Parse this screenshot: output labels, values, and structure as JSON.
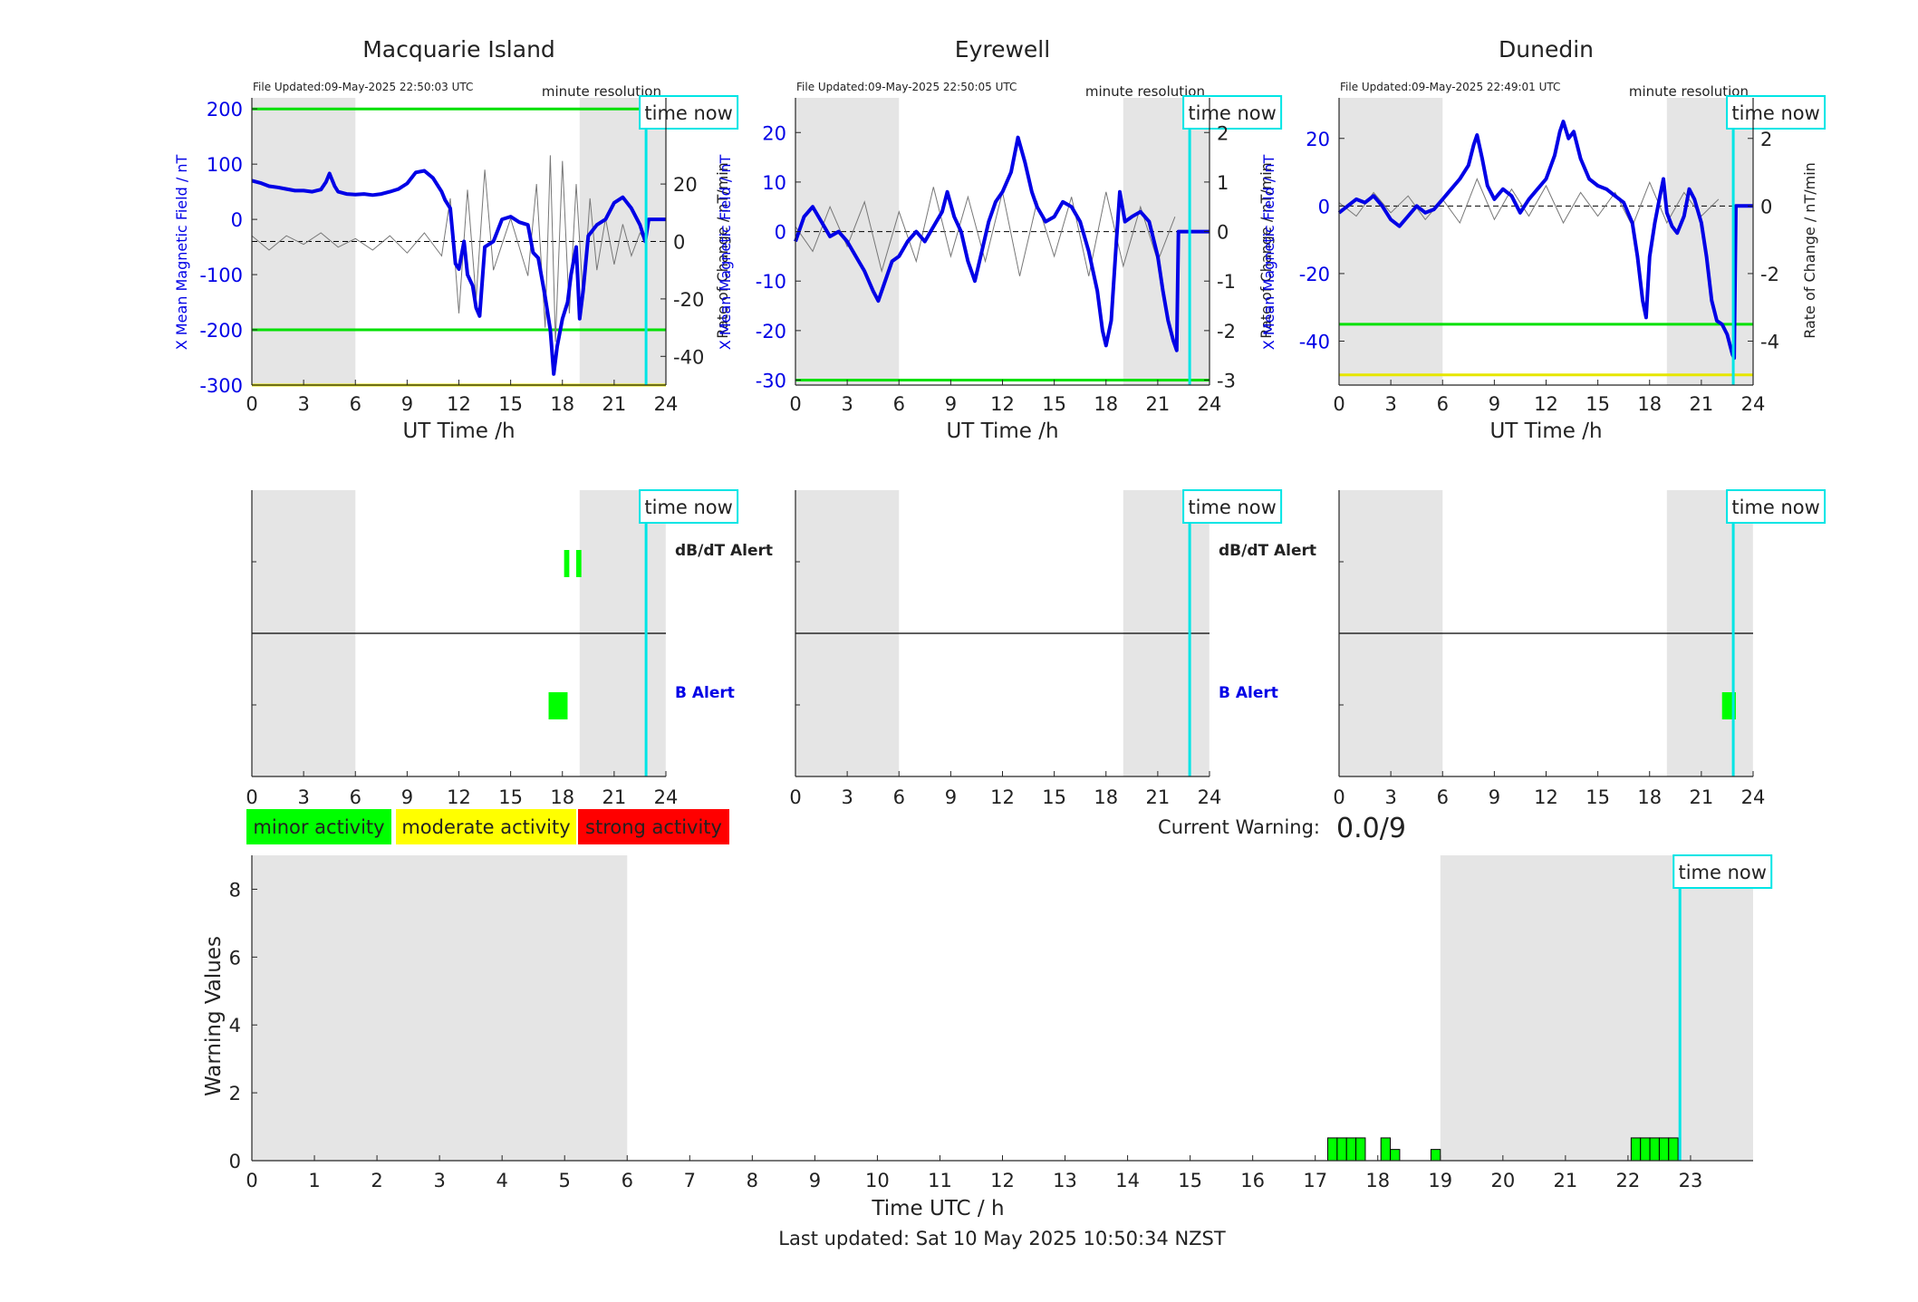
{
  "stations": [
    {
      "name": "Macquarie Island",
      "file_updated": "File Updated:09-May-2025 22:50:03 UTC",
      "resolution": "minute resolution",
      "left_axis": {
        "label": "X Mean Magnetic Field / nT",
        "ticks": [
          200,
          100,
          0,
          -100,
          -200,
          -300
        ],
        "range": [
          -300,
          220
        ]
      },
      "right_axis": {
        "label": "Rate of Change / nT/min",
        "ticks": [
          20,
          0,
          -20,
          -40
        ],
        "range": [
          -50,
          50
        ]
      },
      "threshold_lines": [
        {
          "value": 200,
          "color": "#00e000"
        },
        {
          "value": -200,
          "color": "#00e000"
        },
        {
          "value": -300,
          "color": "#e6e600"
        }
      ],
      "field_series": [
        [
          0,
          70
        ],
        [
          0.5,
          66
        ],
        [
          1,
          60
        ],
        [
          1.5,
          58
        ],
        [
          2,
          55
        ],
        [
          2.5,
          52
        ],
        [
          3,
          52
        ],
        [
          3.5,
          50
        ],
        [
          4,
          54
        ],
        [
          4.3,
          68
        ],
        [
          4.5,
          83
        ],
        [
          4.8,
          60
        ],
        [
          5,
          50
        ],
        [
          5.5,
          46
        ],
        [
          6,
          45
        ],
        [
          6.5,
          46
        ],
        [
          7,
          44
        ],
        [
          7.5,
          46
        ],
        [
          8,
          50
        ],
        [
          8.5,
          55
        ],
        [
          9,
          65
        ],
        [
          9.5,
          85
        ],
        [
          10,
          88
        ],
        [
          10.5,
          75
        ],
        [
          11,
          50
        ],
        [
          11.2,
          35
        ],
        [
          11.5,
          20
        ],
        [
          11.8,
          -80
        ],
        [
          12,
          -90
        ],
        [
          12.3,
          -40
        ],
        [
          12.5,
          -100
        ],
        [
          12.8,
          -120
        ],
        [
          13,
          -160
        ],
        [
          13.2,
          -175
        ],
        [
          13.5,
          -50
        ],
        [
          14,
          -40
        ],
        [
          14.5,
          0
        ],
        [
          15,
          5
        ],
        [
          15.5,
          -5
        ],
        [
          16,
          -10
        ],
        [
          16.3,
          -60
        ],
        [
          16.6,
          -70
        ],
        [
          17,
          -140
        ],
        [
          17.3,
          -200
        ],
        [
          17.5,
          -280
        ],
        [
          17.7,
          -230
        ],
        [
          18,
          -180
        ],
        [
          18.3,
          -150
        ],
        [
          18.5,
          -100
        ],
        [
          18.8,
          -50
        ],
        [
          19,
          -180
        ],
        [
          19.2,
          -130
        ],
        [
          19.5,
          -30
        ],
        [
          20,
          -10
        ],
        [
          20.5,
          0
        ],
        [
          21,
          30
        ],
        [
          21.5,
          40
        ],
        [
          22,
          20
        ],
        [
          22.5,
          -10
        ],
        [
          22.8,
          -40
        ],
        [
          23,
          0
        ],
        [
          24,
          0
        ]
      ],
      "rate_series": [
        [
          0,
          2
        ],
        [
          1,
          -3
        ],
        [
          2,
          2
        ],
        [
          3,
          -1
        ],
        [
          4,
          3
        ],
        [
          5,
          -2
        ],
        [
          6,
          1
        ],
        [
          7,
          -3
        ],
        [
          8,
          2
        ],
        [
          9,
          -4
        ],
        [
          10,
          3
        ],
        [
          11,
          -5
        ],
        [
          11.5,
          15
        ],
        [
          12,
          -25
        ],
        [
          12.5,
          18
        ],
        [
          13,
          -20
        ],
        [
          13.5,
          25
        ],
        [
          14,
          -10
        ],
        [
          15,
          8
        ],
        [
          16,
          -12
        ],
        [
          16.5,
          20
        ],
        [
          17,
          -30
        ],
        [
          17.3,
          30
        ],
        [
          17.6,
          -35
        ],
        [
          18,
          28
        ],
        [
          18.4,
          -25
        ],
        [
          18.8,
          20
        ],
        [
          19.2,
          -20
        ],
        [
          19.6,
          15
        ],
        [
          20,
          -10
        ],
        [
          20.5,
          8
        ],
        [
          21,
          -8
        ],
        [
          21.5,
          6
        ],
        [
          22,
          -5
        ],
        [
          22.5,
          3
        ],
        [
          22.8,
          0
        ]
      ],
      "alerts": {
        "dbdt": {
          "label": "dB/dT Alert",
          "intervals": [
            [
              18.1,
              18.4
            ],
            [
              18.8,
              19.1
            ]
          ]
        },
        "b": {
          "label": "B Alert",
          "intervals": [
            [
              17.2,
              18.3
            ]
          ]
        }
      }
    },
    {
      "name": "Eyrewell",
      "file_updated": "File Updated:09-May-2025 22:50:05 UTC",
      "resolution": "minute resolution",
      "left_axis": {
        "label": "X Mean Magnetic Field / nT",
        "ticks": [
          20,
          10,
          0,
          -10,
          -20,
          -30
        ],
        "range": [
          -31,
          27
        ]
      },
      "right_axis": {
        "label": "Rate of Change / nT/min",
        "ticks": [
          2,
          1,
          0,
          -1,
          -2,
          -3
        ],
        "range": [
          -3.1,
          2.7
        ]
      },
      "threshold_lines": [
        {
          "value": -30,
          "color": "#00e000"
        }
      ],
      "field_series": [
        [
          0,
          -2
        ],
        [
          0.5,
          3
        ],
        [
          1,
          5
        ],
        [
          1.5,
          2
        ],
        [
          2,
          -1
        ],
        [
          2.5,
          0
        ],
        [
          3,
          -2
        ],
        [
          3.5,
          -5
        ],
        [
          4,
          -8
        ],
        [
          4.5,
          -12
        ],
        [
          4.8,
          -14
        ],
        [
          5.2,
          -10
        ],
        [
          5.6,
          -6
        ],
        [
          6,
          -5
        ],
        [
          6.5,
          -2
        ],
        [
          7,
          0
        ],
        [
          7.5,
          -2
        ],
        [
          8,
          1
        ],
        [
          8.5,
          4
        ],
        [
          8.8,
          8
        ],
        [
          9.2,
          3
        ],
        [
          9.6,
          0
        ],
        [
          10,
          -6
        ],
        [
          10.4,
          -10
        ],
        [
          10.8,
          -4
        ],
        [
          11.2,
          2
        ],
        [
          11.6,
          6
        ],
        [
          12,
          8
        ],
        [
          12.5,
          12
        ],
        [
          12.9,
          19
        ],
        [
          13.3,
          14
        ],
        [
          13.7,
          8
        ],
        [
          14,
          5
        ],
        [
          14.5,
          2
        ],
        [
          15,
          3
        ],
        [
          15.5,
          6
        ],
        [
          16,
          5
        ],
        [
          16.5,
          2
        ],
        [
          17,
          -4
        ],
        [
          17.5,
          -12
        ],
        [
          17.8,
          -20
        ],
        [
          18,
          -23
        ],
        [
          18.3,
          -18
        ],
        [
          18.6,
          -2
        ],
        [
          18.8,
          8
        ],
        [
          19.1,
          2
        ],
        [
          19.5,
          3
        ],
        [
          20,
          4
        ],
        [
          20.5,
          2
        ],
        [
          21,
          -5
        ],
        [
          21.3,
          -12
        ],
        [
          21.6,
          -18
        ],
        [
          21.9,
          -22
        ],
        [
          22.1,
          -24
        ],
        [
          22.2,
          0
        ],
        [
          24,
          0
        ]
      ],
      "rate_series": [
        [
          0,
          0.1
        ],
        [
          1,
          -0.4
        ],
        [
          2,
          0.5
        ],
        [
          3,
          -0.3
        ],
        [
          4,
          0.6
        ],
        [
          5,
          -0.8
        ],
        [
          6,
          0.4
        ],
        [
          7,
          -0.6
        ],
        [
          8,
          0.9
        ],
        [
          9,
          -0.5
        ],
        [
          10,
          0.7
        ],
        [
          11,
          -0.6
        ],
        [
          12,
          0.8
        ],
        [
          13,
          -0.9
        ],
        [
          14,
          0.6
        ],
        [
          15,
          -0.5
        ],
        [
          16,
          0.7
        ],
        [
          17,
          -0.9
        ],
        [
          18,
          0.8
        ],
        [
          19,
          -0.7
        ],
        [
          20,
          0.5
        ],
        [
          21,
          -0.6
        ],
        [
          22,
          0.3
        ]
      ],
      "alerts": {
        "dbdt": {
          "label": "dB/dT Alert",
          "intervals": []
        },
        "b": {
          "label": "B Alert",
          "intervals": []
        }
      }
    },
    {
      "name": "Dunedin",
      "file_updated": "File Updated:09-May-2025 22:49:01 UTC",
      "resolution": "minute resolution",
      "left_axis": {
        "label": "X Mean Magnetic Field / nT",
        "ticks": [
          20,
          0,
          -20,
          -40
        ],
        "range": [
          -53,
          32
        ]
      },
      "right_axis": {
        "label": "Rate of Change / nT/min",
        "ticks": [
          2,
          0,
          -2,
          -4
        ],
        "range": [
          -5.3,
          3.2
        ]
      },
      "threshold_lines": [
        {
          "value": -35,
          "color": "#00e000"
        },
        {
          "value": -50,
          "color": "#e6e600"
        }
      ],
      "field_series": [
        [
          0,
          -2
        ],
        [
          0.5,
          0
        ],
        [
          1,
          2
        ],
        [
          1.5,
          1
        ],
        [
          2,
          3
        ],
        [
          2.5,
          0
        ],
        [
          3,
          -4
        ],
        [
          3.5,
          -6
        ],
        [
          4,
          -3
        ],
        [
          4.5,
          0
        ],
        [
          5,
          -2
        ],
        [
          5.5,
          -1
        ],
        [
          6,
          2
        ],
        [
          6.5,
          5
        ],
        [
          7,
          8
        ],
        [
          7.5,
          12
        ],
        [
          7.8,
          18
        ],
        [
          8,
          21
        ],
        [
          8.3,
          14
        ],
        [
          8.6,
          6
        ],
        [
          9,
          2
        ],
        [
          9.5,
          5
        ],
        [
          10,
          3
        ],
        [
          10.5,
          -2
        ],
        [
          11,
          2
        ],
        [
          11.5,
          5
        ],
        [
          12,
          8
        ],
        [
          12.5,
          15
        ],
        [
          12.8,
          22
        ],
        [
          13,
          25
        ],
        [
          13.3,
          20
        ],
        [
          13.6,
          22
        ],
        [
          14,
          14
        ],
        [
          14.5,
          8
        ],
        [
          15,
          6
        ],
        [
          15.5,
          5
        ],
        [
          16,
          3
        ],
        [
          16.5,
          1
        ],
        [
          17,
          -5
        ],
        [
          17.3,
          -15
        ],
        [
          17.6,
          -28
        ],
        [
          17.8,
          -33
        ],
        [
          18,
          -15
        ],
        [
          18.3,
          -5
        ],
        [
          18.6,
          3
        ],
        [
          18.8,
          8
        ],
        [
          19,
          -2
        ],
        [
          19.3,
          -6
        ],
        [
          19.6,
          -8
        ],
        [
          20,
          -3
        ],
        [
          20.3,
          5
        ],
        [
          20.6,
          2
        ],
        [
          21,
          -5
        ],
        [
          21.3,
          -15
        ],
        [
          21.6,
          -28
        ],
        [
          21.9,
          -34
        ],
        [
          22.2,
          -35
        ],
        [
          22.5,
          -38
        ],
        [
          22.8,
          -44
        ],
        [
          22.9,
          -45
        ],
        [
          23,
          0
        ],
        [
          24,
          0
        ]
      ],
      "rate_series": [
        [
          0,
          0.1
        ],
        [
          1,
          -0.3
        ],
        [
          2,
          0.4
        ],
        [
          3,
          -0.2
        ],
        [
          4,
          0.3
        ],
        [
          5,
          -0.4
        ],
        [
          6,
          0.2
        ],
        [
          7,
          -0.5
        ],
        [
          8,
          0.8
        ],
        [
          9,
          -0.4
        ],
        [
          10,
          0.5
        ],
        [
          11,
          -0.3
        ],
        [
          12,
          0.6
        ],
        [
          13,
          -0.5
        ],
        [
          14,
          0.4
        ],
        [
          15,
          -0.3
        ],
        [
          16,
          0.4
        ],
        [
          17,
          -0.6
        ],
        [
          18,
          0.7
        ],
        [
          19,
          -0.5
        ],
        [
          20,
          0.4
        ],
        [
          21,
          -0.3
        ],
        [
          22,
          0.2
        ]
      ],
      "alerts": {
        "dbdt": {
          "label": "dB/dT Alert",
          "intervals": []
        },
        "b": {
          "label": "B Alert",
          "intervals": [
            [
              22.2,
              23.0
            ]
          ]
        }
      }
    }
  ],
  "common": {
    "x_ticks": [
      0,
      3,
      6,
      9,
      12,
      15,
      18,
      21,
      24
    ],
    "x_label": "UT Time /h",
    "night_shading": [
      [
        0,
        6
      ],
      [
        19,
        23.99
      ]
    ],
    "time_now": 22.85,
    "time_now_label": "time now"
  },
  "legend": [
    {
      "label": "minor activity",
      "color": "#00ff00"
    },
    {
      "label": "moderate activity",
      "color": "#ffff00"
    },
    {
      "label": "strong activity",
      "color": "#ff0000"
    }
  ],
  "current_warning": {
    "label": "Current Warning:",
    "value": "0.0/9"
  },
  "warning_chart": {
    "type": "bar",
    "ylabel": "Warning Values",
    "xlabel": "Time UTC / h",
    "ylim": [
      0,
      9
    ],
    "y_ticks": [
      0,
      2,
      4,
      6,
      8
    ],
    "x_ticks": [
      0,
      1,
      2,
      3,
      4,
      5,
      6,
      7,
      8,
      9,
      10,
      11,
      12,
      13,
      14,
      15,
      16,
      17,
      18,
      19,
      20,
      21,
      22,
      23
    ],
    "xlim": [
      0,
      24
    ],
    "night_shading": [
      [
        0,
        6
      ],
      [
        19,
        24
      ]
    ],
    "time_now": 22.83,
    "time_now_label": "time now",
    "bars": [
      [
        17.2,
        0.67
      ],
      [
        17.35,
        0.67
      ],
      [
        17.5,
        0.67
      ],
      [
        17.65,
        0.67
      ],
      [
        18.05,
        0.67
      ],
      [
        18.2,
        0.33
      ],
      [
        18.85,
        0.33
      ],
      [
        22.05,
        0.67
      ],
      [
        22.2,
        0.67
      ],
      [
        22.35,
        0.67
      ],
      [
        22.5,
        0.67
      ],
      [
        22.65,
        0.67
      ]
    ],
    "bar_width": 0.15,
    "bar_color": "#00ff00"
  },
  "footer": {
    "last_updated": "Last updated: Sat 10 May 2025 10:50:34 NZST"
  }
}
